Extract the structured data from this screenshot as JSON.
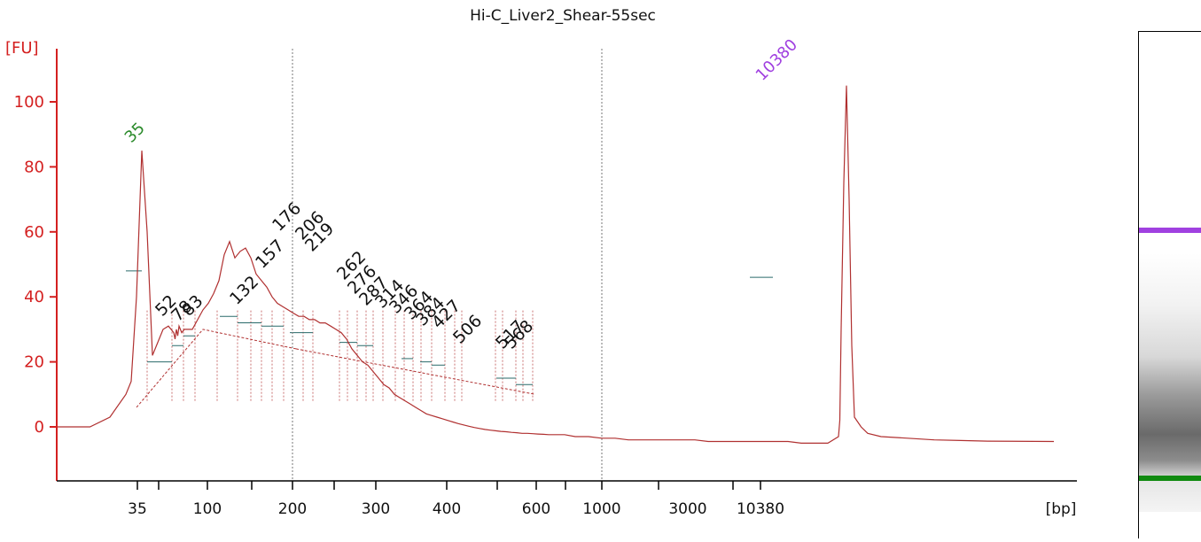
{
  "chart_data": {
    "type": "line",
    "title": "Hi-C_Liver2_Shear-55sec",
    "ylabel": "[FU]",
    "xlabel": "[bp]",
    "ylim": [
      -17,
      118
    ],
    "yticks": [
      0,
      20,
      40,
      60,
      80,
      100
    ],
    "xticks": [
      {
        "label": "35"
      },
      {
        "label": ""
      },
      {
        "label": "100"
      },
      {
        "label": ""
      },
      {
        "label": "200"
      },
      {
        "label": "300"
      },
      {
        "label": "400"
      },
      {
        "label": ""
      },
      {
        "label": "600"
      },
      {
        "label": ""
      },
      {
        "label": "1000"
      },
      {
        "label": "3000"
      },
      {
        "label": ""
      },
      {
        "label": "10380"
      }
    ],
    "gridlines_at": [
      "200",
      "1000"
    ],
    "markers": [
      {
        "label": "35",
        "color": "#2a8a2a",
        "peak": 85
      },
      {
        "label": "10380",
        "color": "#a040e0",
        "peak": 105
      }
    ],
    "peak_labels": [
      "52",
      "78",
      "83",
      "132",
      "157",
      "176",
      "206",
      "219",
      "262",
      "276",
      "287",
      "314",
      "346",
      "364",
      "384",
      "427",
      "506",
      "517",
      "568"
    ],
    "peak_values": [
      31,
      29,
      32,
      34,
      46,
      57,
      55,
      54,
      37,
      36,
      34,
      34,
      33,
      32,
      30,
      25,
      20,
      19,
      14
    ],
    "series": [
      {
        "name": "",
        "color": "#b03030",
        "x": [
          0,
          10,
          25,
          40,
          52,
          56,
          60,
          64,
          68,
          72,
          76,
          80,
          84,
          86,
          88,
          89,
          90,
          91,
          92,
          93,
          94,
          96,
          98,
          102,
          106,
          110,
          114,
          118,
          122,
          126,
          130,
          134,
          138,
          142,
          146,
          150,
          154,
          158,
          162,
          166,
          170,
          174,
          178,
          182,
          186,
          190,
          194,
          198,
          202,
          206,
          210,
          214,
          218,
          222,
          226,
          230,
          234,
          238,
          242,
          246,
          250,
          254,
          258,
          262,
          266,
          270,
          274,
          278,
          282,
          286,
          290,
          294,
          298,
          302,
          306,
          310,
          314,
          318,
          322,
          326,
          330,
          334,
          338,
          342,
          346,
          350,
          354,
          358,
          362,
          366,
          370,
          374,
          378,
          382,
          390,
          400,
          410,
          420,
          430,
          440,
          450,
          460,
          470,
          480,
          490,
          500,
          510,
          520,
          530,
          540,
          550,
          560,
          570,
          580,
          588,
          589,
          590,
          592,
          594,
          596,
          598,
          600,
          605,
          610,
          620,
          640,
          660,
          680,
          700,
          750
        ],
        "y": [
          0,
          0,
          0,
          3,
          10,
          14,
          40,
          85,
          60,
          22,
          26,
          30,
          31,
          30,
          29,
          27,
          30,
          28,
          31,
          30,
          29,
          30,
          30,
          30,
          33,
          36,
          38,
          41,
          45,
          53,
          57,
          52,
          54,
          55,
          52,
          47,
          45,
          43,
          40,
          38,
          37,
          36,
          35,
          34,
          34,
          33,
          33,
          32,
          32,
          31,
          30,
          29,
          27,
          24,
          22,
          20,
          19,
          17,
          15,
          13,
          12,
          10,
          9,
          8,
          7,
          6,
          5,
          4,
          3.5,
          3,
          2.5,
          2,
          1.5,
          1,
          0.6,
          0.2,
          -0.2,
          -0.5,
          -0.8,
          -1,
          -1.2,
          -1.4,
          -1.5,
          -1.7,
          -1.8,
          -2,
          -2,
          -2.1,
          -2.2,
          -2.3,
          -2.4,
          -2.4,
          -2.4,
          -2.4,
          -3,
          -3,
          -3.5,
          -3.5,
          -4,
          -4,
          -4,
          -4,
          -4,
          -4,
          -4.5,
          -4.5,
          -4.5,
          -4.5,
          -4.5,
          -4.5,
          -4.5,
          -5,
          -5,
          -5,
          -3,
          2,
          30,
          75,
          105,
          70,
          25,
          3,
          0,
          -2,
          -3,
          -3.5,
          -4,
          -4.2,
          -4.4,
          -4.5
        ]
      }
    ]
  }
}
